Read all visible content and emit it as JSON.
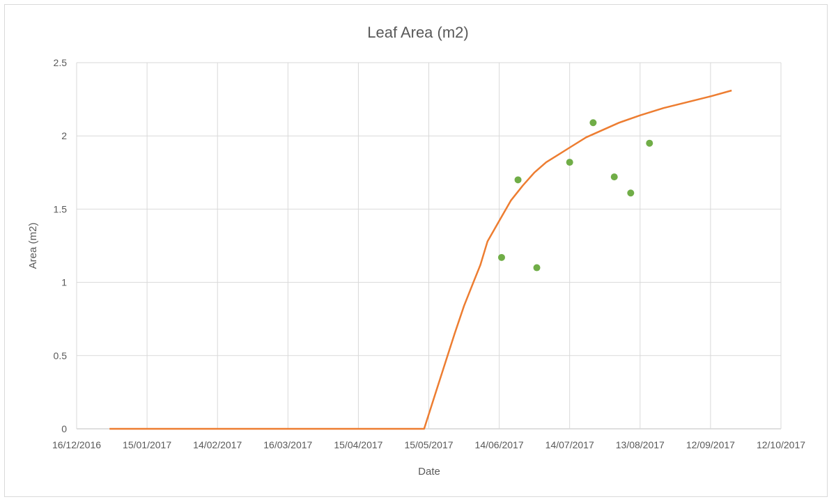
{
  "chart_data": {
    "type": "scatter",
    "title": "Leaf Area (m2)",
    "xlabel": "Date",
    "ylabel": "Area (m2)",
    "x_ticks": [
      "16/12/2016",
      "15/01/2017",
      "14/02/2017",
      "16/03/2017",
      "15/04/2017",
      "15/05/2017",
      "14/06/2017",
      "14/07/2017",
      "13/08/2017",
      "12/09/2017",
      "12/10/2017"
    ],
    "xlim": [
      "2016-12-16",
      "2017-10-12"
    ],
    "y_ticks": [
      "0",
      "0.5",
      "1",
      "1.5",
      "2",
      "2.5"
    ],
    "ylim": [
      0,
      2.5
    ],
    "grid": true,
    "legend": "none",
    "series": [
      {
        "type": "line",
        "color": "#ED7D31",
        "points": [
          {
            "x": "2016-12-30",
            "y": 0
          },
          {
            "x": "2017-05-13",
            "y": 0
          },
          {
            "x": "2017-05-18",
            "y": 0.25
          },
          {
            "x": "2017-05-22",
            "y": 0.45
          },
          {
            "x": "2017-05-26",
            "y": 0.65
          },
          {
            "x": "2017-05-30",
            "y": 0.84
          },
          {
            "x": "2017-06-03",
            "y": 1.0
          },
          {
            "x": "2017-06-06",
            "y": 1.12
          },
          {
            "x": "2017-06-09",
            "y": 1.28
          },
          {
            "x": "2017-06-14",
            "y": 1.42
          },
          {
            "x": "2017-06-19",
            "y": 1.56
          },
          {
            "x": "2017-06-24",
            "y": 1.66
          },
          {
            "x": "2017-06-29",
            "y": 1.75
          },
          {
            "x": "2017-07-04",
            "y": 1.82
          },
          {
            "x": "2017-07-09",
            "y": 1.87
          },
          {
            "x": "2017-07-14",
            "y": 1.92
          },
          {
            "x": "2017-07-21",
            "y": 1.99
          },
          {
            "x": "2017-07-28",
            "y": 2.04
          },
          {
            "x": "2017-08-04",
            "y": 2.09
          },
          {
            "x": "2017-08-13",
            "y": 2.14
          },
          {
            "x": "2017-08-23",
            "y": 2.19
          },
          {
            "x": "2017-09-02",
            "y": 2.23
          },
          {
            "x": "2017-09-12",
            "y": 2.27
          },
          {
            "x": "2017-09-21",
            "y": 2.31
          }
        ]
      },
      {
        "type": "scatter",
        "color": "#70AD47",
        "points": [
          {
            "x": "2017-06-15",
            "y": 1.17
          },
          {
            "x": "2017-06-22",
            "y": 1.7
          },
          {
            "x": "2017-06-30",
            "y": 1.1
          },
          {
            "x": "2017-07-14",
            "y": 1.82
          },
          {
            "x": "2017-07-24",
            "y": 2.09
          },
          {
            "x": "2017-08-02",
            "y": 1.72
          },
          {
            "x": "2017-08-09",
            "y": 1.61
          },
          {
            "x": "2017-08-17",
            "y": 1.95
          }
        ]
      }
    ]
  }
}
